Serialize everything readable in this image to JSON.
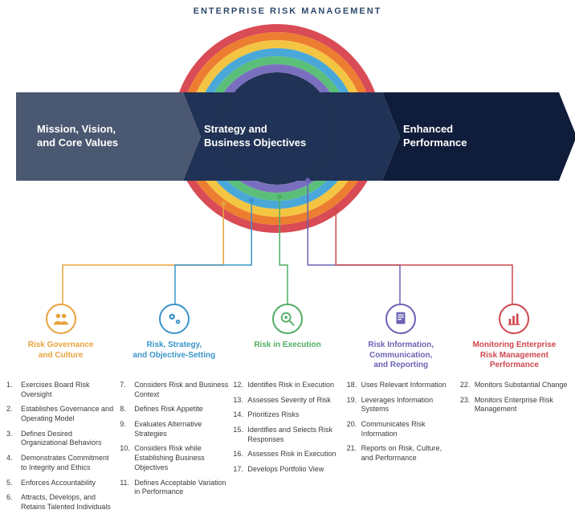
{
  "arc_title": "ENTERPRISE RISK MANAGEMENT",
  "arrows": {
    "seg1": "Mission, Vision,\nand Core Values",
    "seg2": "Strategy and\nBusiness Objectives",
    "seg3": "Enhanced\nPerformance",
    "colors": {
      "seg1": "#4b5871",
      "seg2": "#203255",
      "seg3": "#0f1c3a"
    }
  },
  "rings": {
    "outer_diameter": 260,
    "thickness": 10,
    "colors": [
      "#d94b55",
      "#ed7d31",
      "#f4c542",
      "#4aa8d8",
      "#5bbf7a",
      "#7a6fbf"
    ]
  },
  "columns": [
    {
      "id": "governance",
      "color": "#e8a33d",
      "icon": "people",
      "title": "Risk Governance\nand Culture",
      "start": 1,
      "items": [
        "Exercises Board Risk Oversight",
        "Establishes Governance and Operating Model",
        "Defines Desired Organizational Behaviors",
        "Demonstrates Commitment to Integrity and Ethics",
        "Enforces Accountability",
        "Attracts, Develops, and Retains Talented Individuals"
      ]
    },
    {
      "id": "strategy",
      "color": "#3a95c9",
      "icon": "gears",
      "title": "Risk, Strategy,\nand Objective-Setting",
      "start": 7,
      "items": [
        "Considers Risk and Business Context",
        "Defines Risk Appetite",
        "Evaluates Alternative Strategies",
        "Considers Risk while Establishing Business Objectives",
        "Defines Acceptable Variation in Performance"
      ]
    },
    {
      "id": "execution",
      "color": "#4fae62",
      "icon": "magnify",
      "title": "Risk in Execution",
      "start": 12,
      "items": [
        "Identifies Risk in Execution",
        "Assesses Severity of Risk",
        "Prioritizes Risks",
        "Identifies and Selects Risk Responses",
        "Assesses Risk in Execution",
        "Develops Portfolio View"
      ]
    },
    {
      "id": "information",
      "color": "#6a63b5",
      "icon": "document",
      "title": "Risk Information,\nCommunication,\nand Reporting",
      "start": 18,
      "items": [
        "Uses Relevant Information",
        "Leverages Information Systems",
        "Communicates Risk Information",
        "Reports on Risk, Culture, and Performance"
      ]
    },
    {
      "id": "monitoring",
      "color": "#cf4850",
      "icon": "barchart",
      "title": "Monitoring Enterprise\nRisk Management\nPerformance",
      "start": 22,
      "items": [
        "Monitors Substantial Change",
        "Monitors Enterprise Risk Management"
      ]
    }
  ],
  "title_color": "#2d4a6b",
  "connector_dot_radius": 3
}
